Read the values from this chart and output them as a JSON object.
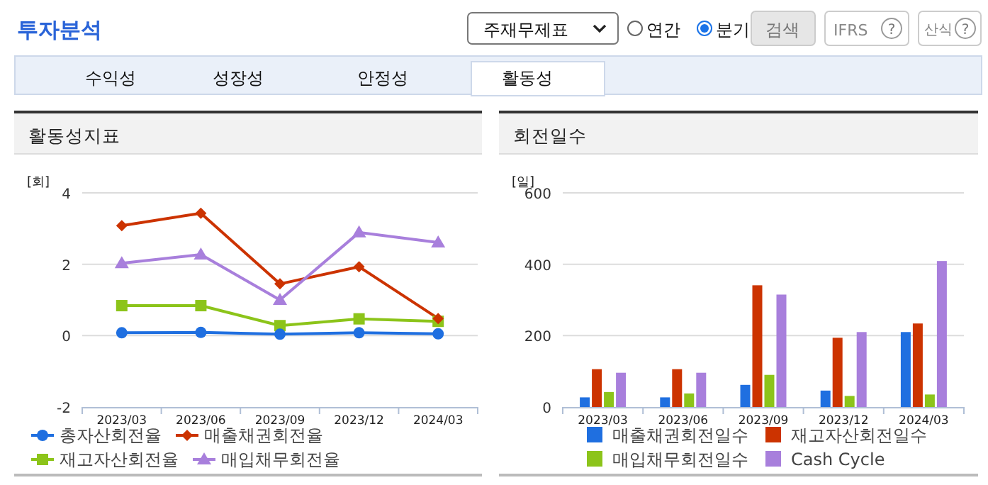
{
  "chart_data": [
    {
      "type": "other",
      "title": "투자분석",
      "annotations": [
        "주재무제표",
        "연간",
        "분기",
        "검색",
        "IFRS",
        "?",
        "산식",
        "?",
        "수익성",
        "성장성",
        "안정성",
        "활동성"
      ]
    },
    {
      "type": "line",
      "title": "활동성지표",
      "ylabel": "[회]",
      "categories": [
        "2023/03",
        "2023/06",
        "2023/09",
        "2023/12",
        "2024/03"
      ],
      "ylim": [
        -2,
        4
      ],
      "yticks": [
        -2,
        0,
        2,
        4
      ],
      "grid": "y",
      "legend": "bottom",
      "series": [
        {
          "name": "총자산회전율",
          "color": "#1f6fe0",
          "marker": "circle",
          "values": [
            0.08,
            0.09,
            0.04,
            0.08,
            0.05
          ]
        },
        {
          "name": "매출채권회전율",
          "color": "#cc3300",
          "marker": "diamond",
          "values": [
            3.08,
            3.43,
            1.45,
            1.93,
            0.48
          ]
        },
        {
          "name": "재고자산회전율",
          "color": "#8cc41a",
          "marker": "square",
          "values": [
            0.84,
            0.84,
            0.28,
            0.47,
            0.4
          ]
        },
        {
          "name": "매입채무회전율",
          "color": "#a87fdc",
          "marker": "triangle",
          "values": [
            2.03,
            2.27,
            1.0,
            2.89,
            2.61
          ]
        }
      ]
    },
    {
      "type": "bar",
      "title": "회전일수",
      "ylabel": "[일]",
      "categories": [
        "2023/03",
        "2023/06",
        "2023/09",
        "2023/12",
        "2024/03"
      ],
      "ylim": [
        0,
        600
      ],
      "yticks": [
        0,
        200,
        400,
        600
      ],
      "grid": "y",
      "legend": "bottom",
      "series": [
        {
          "name": "매출채권회전일수",
          "color": "#1f6fe0",
          "values": [
            27,
            27,
            62,
            46,
            210
          ]
        },
        {
          "name": "재고자산회전일수",
          "color": "#cc3300",
          "values": [
            106,
            106,
            341,
            194,
            234
          ]
        },
        {
          "name": "매입채무회전일수",
          "color": "#8cc41a",
          "values": [
            42,
            38,
            90,
            31,
            35
          ]
        },
        {
          "name": "Cash Cycle",
          "color": "#a87fdc",
          "values": [
            96,
            96,
            315,
            210,
            409
          ]
        }
      ]
    }
  ]
}
